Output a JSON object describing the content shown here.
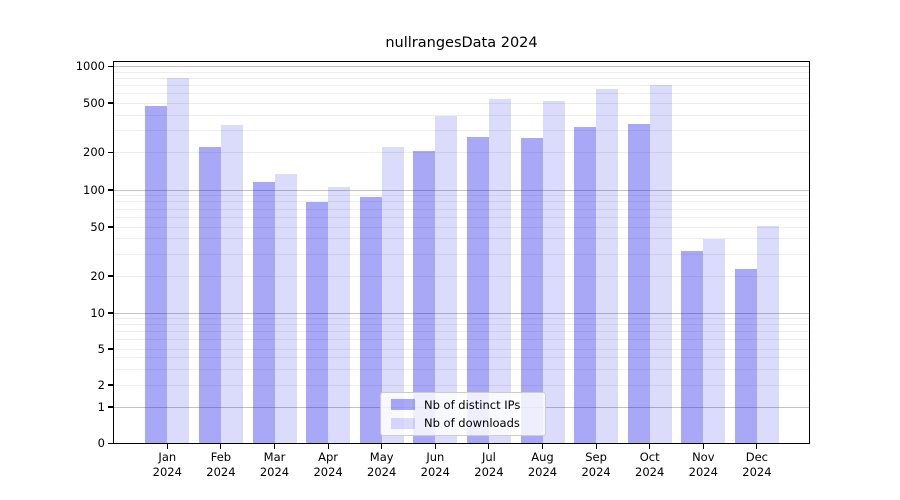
{
  "chart_data": {
    "type": "bar",
    "title": "nullrangesData 2024",
    "categories": [
      "Jan",
      "Feb",
      "Mar",
      "Apr",
      "May",
      "Jun",
      "Jul",
      "Aug",
      "Sep",
      "Oct",
      "Nov",
      "Dec"
    ],
    "category_year": "2024",
    "series": [
      {
        "name": "Nb of distinct IPs",
        "color": "#a7a7f7",
        "fill": "rgba(13,13,234,0.36)",
        "values": [
          470,
          220,
          115,
          80,
          88,
          205,
          265,
          260,
          320,
          340,
          32,
          23
        ]
      },
      {
        "name": "Nb of downloads",
        "color": "#dadafb",
        "fill": "rgba(13,13,234,0.15)",
        "values": [
          800,
          330,
          135,
          105,
          220,
          390,
          535,
          520,
          650,
          700,
          40,
          51
        ]
      }
    ],
    "y_axis": {
      "scale": "symlog",
      "tick_values": [
        0,
        1,
        2,
        5,
        10,
        20,
        50,
        100,
        200,
        500,
        1000
      ],
      "range": [
        0,
        1000
      ]
    },
    "grid": {
      "major_values": [
        1,
        10,
        100,
        1000
      ],
      "minor_values": [
        2,
        3,
        4,
        5,
        6,
        7,
        8,
        9,
        20,
        30,
        40,
        50,
        60,
        70,
        80,
        90,
        200,
        300,
        400,
        500,
        600,
        700,
        800,
        900
      ],
      "major_color": "#c3c3c3",
      "minor_color": "#ededed"
    },
    "legend_position": "lower center",
    "axis_color": "#000000",
    "background_color": "#ffffff"
  }
}
